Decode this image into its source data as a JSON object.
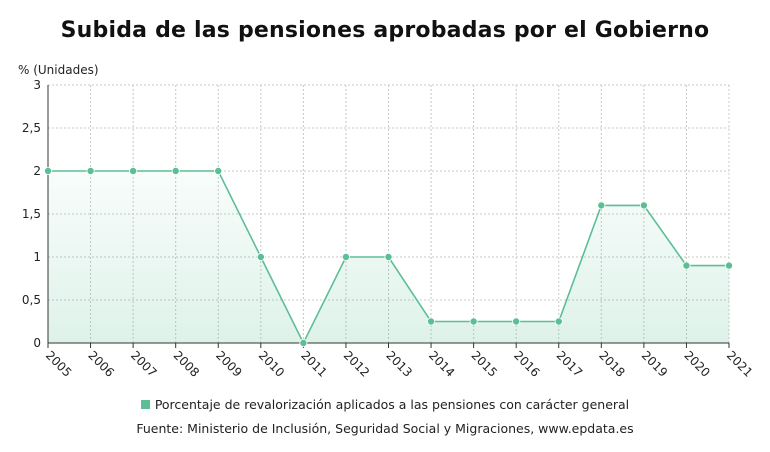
{
  "title": "Subida de las pensiones aprobadas por el Gobierno",
  "source": "Fuente: Ministerio de Inclusión, Seguridad Social y Migraciones, www.epdata.es",
  "colors": {
    "series": "#5bbf95",
    "fill": "#5bbf95",
    "grid": "#c8c8c8",
    "axis": "#333333"
  },
  "chart_data": {
    "type": "line",
    "title": "Subida de las pensiones aprobadas por el Gobierno",
    "ylabel": "% (Unidades)",
    "xlabel": "",
    "x": [
      "2005",
      "2006",
      "2007",
      "2008",
      "2009",
      "2010",
      "2011",
      "2012",
      "2013",
      "2014",
      "2015",
      "2016",
      "2017",
      "2018",
      "2019",
      "2020",
      "2021"
    ],
    "series": [
      {
        "name": "Porcentaje de revalorización aplicados a las pensiones con carácter general",
        "values": [
          2,
          2,
          2,
          2,
          2,
          1,
          0,
          1,
          1,
          0.25,
          0.25,
          0.25,
          0.25,
          1.6,
          1.6,
          0.9,
          0.9
        ]
      }
    ],
    "ylim": [
      0,
      3
    ],
    "yticks": [
      "0",
      "0,5",
      "1",
      "1,5",
      "2",
      "2,5",
      "3"
    ],
    "ytick_values": [
      0,
      0.5,
      1,
      1.5,
      2,
      2.5,
      3
    ],
    "grid": true,
    "area_fill": true,
    "legend_position": "bottom"
  }
}
